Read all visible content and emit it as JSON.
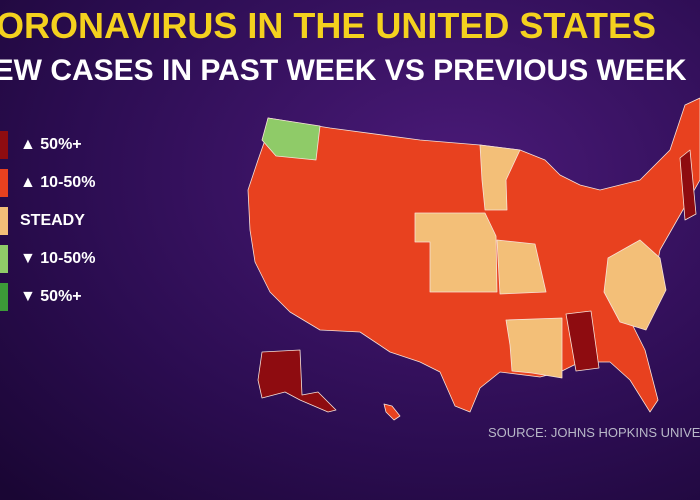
{
  "header": {
    "title": "CORONAVIRUS IN THE UNITED STATES",
    "subtitle": "NEW CASES IN PAST WEEK VS PREVIOUS WEEK"
  },
  "legend": {
    "items": [
      {
        "label": "▲ 50%+",
        "color": "#8e0c10"
      },
      {
        "label": "▲ 10-50%",
        "color": "#e8411f"
      },
      {
        "label": "STEADY",
        "color": "#f3bf78"
      },
      {
        "label": "▼ 10-50%",
        "color": "#8fcb68"
      },
      {
        "label": "▼ 50%+",
        "color": "#3c9a38"
      }
    ]
  },
  "source": "SOURCE: JOHNS HOPKINS UNIVERSITY"
}
